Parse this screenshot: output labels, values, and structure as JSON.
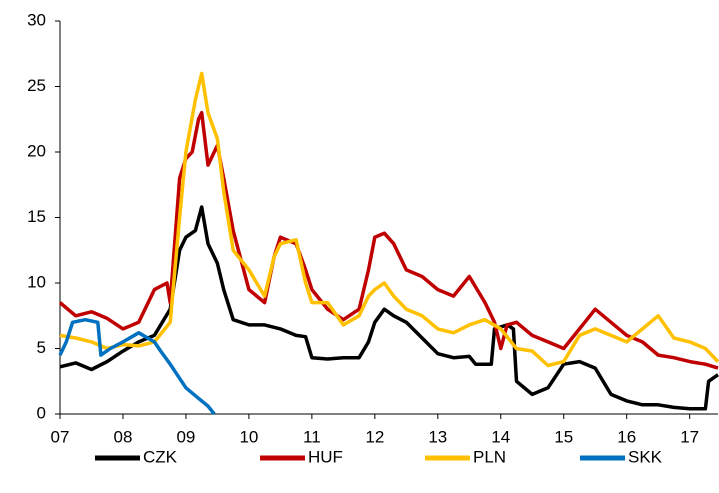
{
  "chart_data": {
    "type": "line",
    "xlim": [
      7,
      17.45
    ],
    "xticks": [
      {
        "value": 7,
        "label": "07"
      },
      {
        "value": 8,
        "label": "08"
      },
      {
        "value": 9,
        "label": "09"
      },
      10,
      11,
      12,
      13,
      14,
      15,
      16,
      17
    ],
    "ylim": [
      0,
      30
    ],
    "yticks": [
      0,
      5,
      10,
      15,
      20,
      25,
      30
    ],
    "grid": false,
    "legend": "bottom",
    "series": [
      {
        "name": "CZK",
        "color": "#000000",
        "x": [
          7.0,
          7.25,
          7.5,
          7.75,
          8.0,
          8.25,
          8.5,
          8.75,
          8.9,
          9.0,
          9.15,
          9.25,
          9.35,
          9.5,
          9.6,
          9.75,
          10.0,
          10.25,
          10.5,
          10.75,
          10.9,
          11.0,
          11.25,
          11.5,
          11.75,
          11.9,
          12.0,
          12.15,
          12.3,
          12.5,
          12.75,
          13.0,
          13.25,
          13.5,
          13.6,
          13.85,
          13.9,
          14.1,
          14.2,
          14.25,
          14.5,
          14.75,
          15.0,
          15.25,
          15.5,
          15.75,
          16.0,
          16.25,
          16.5,
          16.75,
          17.0,
          17.25,
          17.3,
          17.45
        ],
        "values": [
          3.6,
          3.9,
          3.4,
          4.0,
          4.8,
          5.5,
          6.0,
          8.0,
          12.5,
          13.5,
          14.0,
          15.8,
          13.0,
          11.5,
          9.5,
          7.2,
          6.8,
          6.8,
          6.5,
          6.0,
          5.9,
          4.3,
          4.2,
          4.3,
          4.3,
          5.5,
          7.0,
          8.0,
          7.5,
          7.0,
          5.8,
          4.6,
          4.3,
          4.4,
          3.8,
          3.8,
          6.5,
          6.8,
          6.5,
          2.5,
          1.5,
          2.0,
          3.8,
          4.0,
          3.5,
          1.5,
          1.0,
          0.7,
          0.7,
          0.5,
          0.4,
          0.4,
          2.5,
          3.0
        ]
      },
      {
        "name": "HUF",
        "color": "#c00000",
        "x": [
          7.0,
          7.25,
          7.5,
          7.75,
          8.0,
          8.25,
          8.5,
          8.7,
          8.75,
          8.9,
          9.0,
          9.1,
          9.2,
          9.25,
          9.35,
          9.5,
          9.6,
          9.75,
          10.0,
          10.25,
          10.4,
          10.5,
          10.75,
          10.9,
          11.0,
          11.25,
          11.5,
          11.75,
          11.9,
          12.0,
          12.15,
          12.3,
          12.5,
          12.75,
          13.0,
          13.25,
          13.5,
          13.75,
          13.9,
          14.0,
          14.1,
          14.25,
          14.5,
          14.75,
          15.0,
          15.25,
          15.5,
          15.75,
          16.0,
          16.25,
          16.5,
          16.75,
          17.0,
          17.25,
          17.45
        ],
        "values": [
          8.5,
          7.5,
          7.8,
          7.3,
          6.5,
          7.0,
          9.5,
          10.0,
          8.5,
          18.0,
          19.5,
          20.0,
          22.5,
          23.0,
          19.0,
          20.5,
          18.0,
          14.0,
          9.5,
          8.5,
          12.0,
          13.5,
          13.0,
          11.0,
          9.5,
          8.0,
          7.2,
          8.0,
          11.0,
          13.5,
          13.8,
          13.0,
          11.0,
          10.5,
          9.5,
          9.0,
          10.5,
          8.5,
          7.0,
          5.0,
          6.8,
          7.0,
          6.0,
          5.5,
          5.0,
          6.5,
          8.0,
          7.0,
          6.0,
          5.5,
          4.5,
          4.3,
          4.0,
          3.8,
          3.5
        ]
      },
      {
        "name": "PLN",
        "color": "#ffc000",
        "x": [
          7.0,
          7.25,
          7.5,
          7.75,
          8.0,
          8.25,
          8.5,
          8.75,
          8.9,
          9.0,
          9.15,
          9.25,
          9.35,
          9.5,
          9.6,
          9.75,
          10.0,
          10.25,
          10.4,
          10.5,
          10.75,
          10.9,
          11.0,
          11.25,
          11.5,
          11.75,
          11.9,
          12.0,
          12.15,
          12.3,
          12.5,
          12.75,
          13.0,
          13.25,
          13.5,
          13.75,
          14.0,
          14.25,
          14.5,
          14.75,
          15.0,
          15.25,
          15.5,
          15.75,
          16.0,
          16.25,
          16.5,
          16.75,
          17.0,
          17.25,
          17.45
        ],
        "values": [
          6.0,
          5.8,
          5.5,
          5.0,
          5.3,
          5.2,
          5.5,
          7.0,
          15.0,
          20.0,
          24.0,
          26.0,
          23.0,
          21.0,
          17.0,
          12.5,
          11.0,
          9.0,
          12.0,
          13.0,
          13.3,
          10.0,
          8.5,
          8.5,
          6.8,
          7.5,
          9.0,
          9.5,
          10.0,
          9.0,
          8.0,
          7.5,
          6.5,
          6.2,
          6.8,
          7.2,
          6.5,
          5.0,
          4.8,
          3.7,
          4.0,
          6.0,
          6.5,
          6.0,
          5.5,
          6.5,
          7.5,
          5.8,
          5.5,
          5.0,
          4.0
        ]
      },
      {
        "name": "SKK",
        "color": "#0070c0",
        "x": [
          7.0,
          7.1,
          7.2,
          7.4,
          7.6,
          7.65,
          7.8,
          8.0,
          8.25,
          8.5,
          8.6,
          8.75,
          9.0,
          9.2,
          9.35,
          9.45
        ],
        "values": [
          4.5,
          5.5,
          7.0,
          7.2,
          7.0,
          4.5,
          5.0,
          5.5,
          6.2,
          5.5,
          4.8,
          3.8,
          2.0,
          1.2,
          0.6,
          0.0
        ]
      }
    ]
  }
}
